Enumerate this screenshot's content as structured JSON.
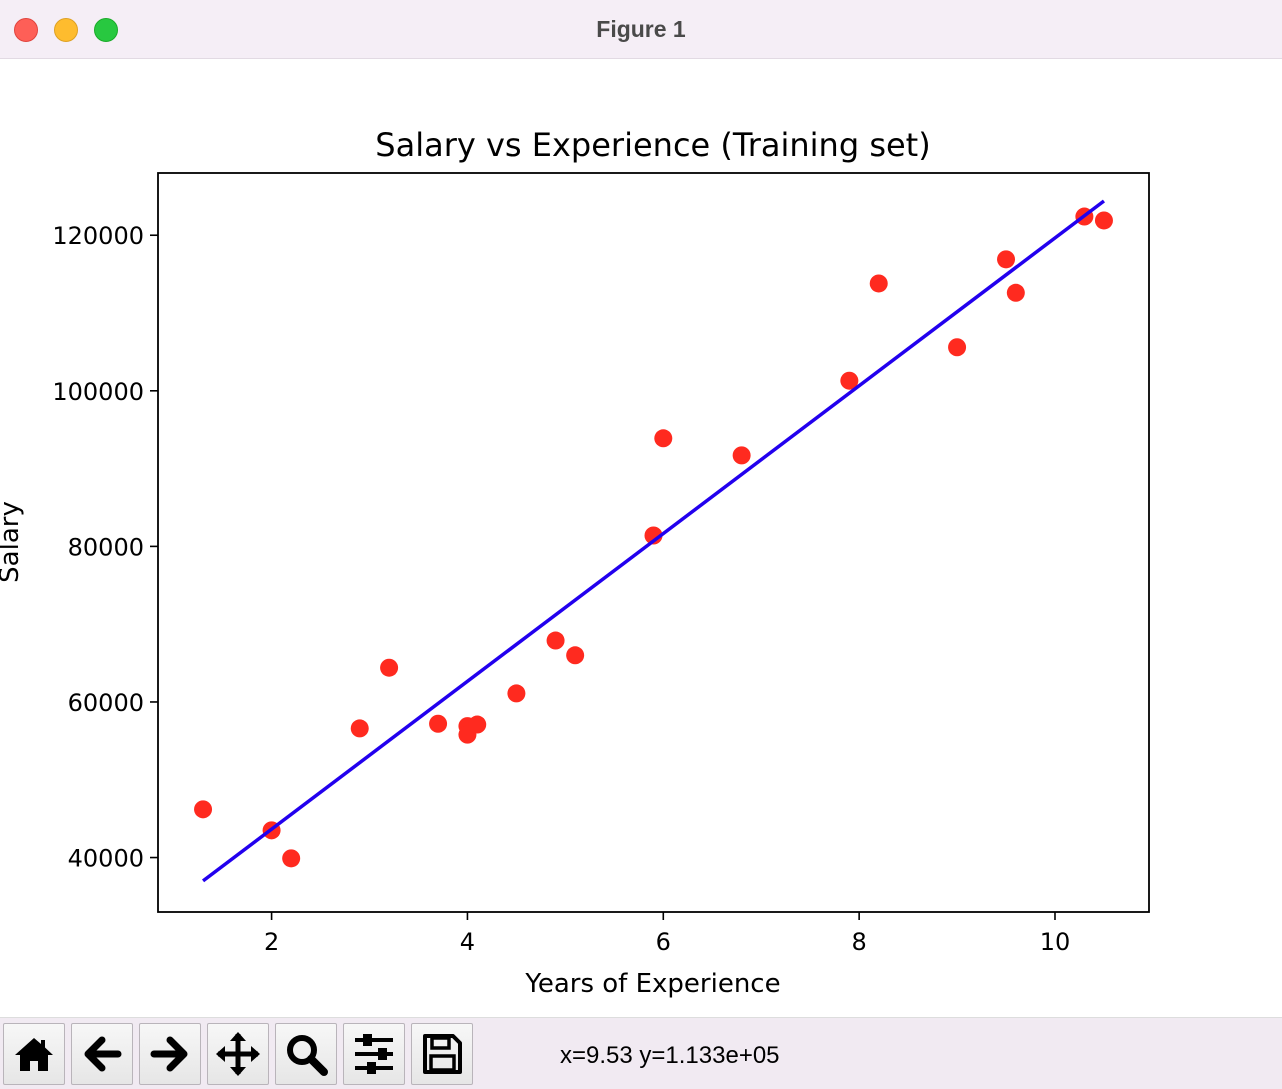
{
  "window": {
    "title": "Figure 1"
  },
  "chart_data": {
    "type": "scatter",
    "title": "Salary vs Experience (Training set)",
    "xlabel": "Years of Experience",
    "ylabel": "Salary",
    "xlim": [
      0.84,
      10.96
    ],
    "ylim": [
      33000,
      128000
    ],
    "xticks": [
      2,
      4,
      6,
      8,
      10
    ],
    "yticks": [
      40000,
      60000,
      80000,
      100000,
      120000
    ],
    "xtick_labels": [
      "2",
      "4",
      "6",
      "8",
      "10"
    ],
    "ytick_labels": [
      "40000",
      "60000",
      "80000",
      "100000",
      "120000"
    ],
    "grid": false,
    "series": [
      {
        "type": "scatter",
        "color": "#ff2a1f",
        "points": [
          [
            1.3,
            46200
          ],
          [
            2.0,
            43500
          ],
          [
            2.2,
            39900
          ],
          [
            2.9,
            56600
          ],
          [
            3.2,
            64400
          ],
          [
            3.7,
            57200
          ],
          [
            4.0,
            56900
          ],
          [
            4.0,
            55800
          ],
          [
            4.1,
            57100
          ],
          [
            4.5,
            61100
          ],
          [
            4.9,
            67900
          ],
          [
            5.1,
            66000
          ],
          [
            5.9,
            81400
          ],
          [
            6.0,
            93900
          ],
          [
            6.8,
            91700
          ],
          [
            7.9,
            101300
          ],
          [
            8.2,
            113800
          ],
          [
            9.0,
            105600
          ],
          [
            9.5,
            116900
          ],
          [
            9.6,
            112600
          ],
          [
            10.3,
            122400
          ],
          [
            10.5,
            121900
          ]
        ]
      },
      {
        "type": "line",
        "color": "#2200ee",
        "points": [
          [
            1.3,
            37000
          ],
          [
            10.5,
            124400
          ]
        ]
      }
    ]
  },
  "toolbar": {
    "buttons": [
      {
        "icon": "home-icon"
      },
      {
        "icon": "back-arrow-icon"
      },
      {
        "icon": "forward-arrow-icon"
      },
      {
        "icon": "pan-move-icon"
      },
      {
        "icon": "zoom-magnifier-icon"
      },
      {
        "icon": "configure-subplots-icon"
      },
      {
        "icon": "save-floppy-icon"
      }
    ],
    "coordinates": "x=9.53 y=1.133e+05"
  }
}
